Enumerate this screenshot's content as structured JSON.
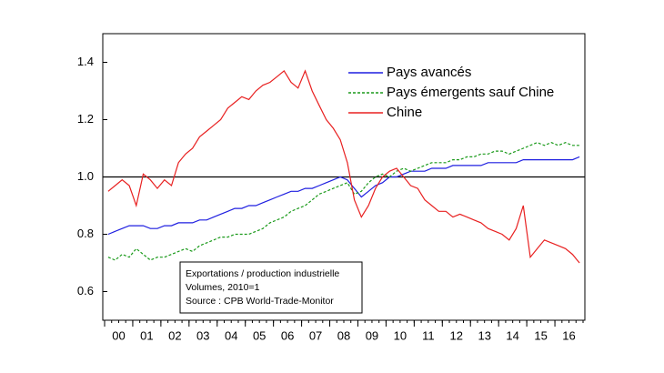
{
  "chart_data": {
    "type": "line",
    "categories": [
      null,
      "00",
      null,
      null,
      null,
      "01",
      null,
      null,
      null,
      "02",
      null,
      null,
      null,
      "03",
      null,
      null,
      null,
      "04",
      null,
      null,
      null,
      "05",
      null,
      null,
      null,
      "06",
      null,
      null,
      null,
      "07",
      null,
      null,
      null,
      "08",
      null,
      null,
      null,
      "09",
      null,
      null,
      null,
      "10",
      null,
      null,
      null,
      "11",
      null,
      null,
      null,
      "12",
      null,
      null,
      null,
      "13",
      null,
      null,
      null,
      "14",
      null,
      null,
      null,
      "15",
      null,
      null,
      null,
      "16",
      null,
      null
    ],
    "series": [
      {
        "name": "Pays avancés",
        "color": "#1f1fe0",
        "style": "solid",
        "values": [
          0.8,
          0.81,
          0.82,
          0.83,
          0.83,
          0.83,
          0.82,
          0.82,
          0.83,
          0.83,
          0.84,
          0.84,
          0.84,
          0.85,
          0.85,
          0.86,
          0.87,
          0.88,
          0.89,
          0.89,
          0.9,
          0.9,
          0.91,
          0.92,
          0.93,
          0.94,
          0.95,
          0.95,
          0.96,
          0.96,
          0.97,
          0.98,
          0.99,
          1.0,
          0.99,
          0.96,
          0.93,
          0.95,
          0.97,
          0.98,
          1.0,
          1.0,
          1.01,
          1.02,
          1.02,
          1.02,
          1.03,
          1.03,
          1.03,
          1.04,
          1.04,
          1.04,
          1.04,
          1.04,
          1.05,
          1.05,
          1.05,
          1.05,
          1.05,
          1.06,
          1.06,
          1.06,
          1.06,
          1.06,
          1.06,
          1.06,
          1.06,
          1.07
        ]
      },
      {
        "name": "Pays émergents sauf Chine",
        "color": "#1a9a1a",
        "style": "dashed",
        "values": [
          0.72,
          0.71,
          0.73,
          0.72,
          0.75,
          0.73,
          0.71,
          0.72,
          0.72,
          0.73,
          0.74,
          0.75,
          0.74,
          0.76,
          0.77,
          0.78,
          0.79,
          0.79,
          0.8,
          0.8,
          0.8,
          0.81,
          0.82,
          0.84,
          0.85,
          0.86,
          0.88,
          0.89,
          0.9,
          0.92,
          0.94,
          0.95,
          0.96,
          0.97,
          0.98,
          0.94,
          0.95,
          0.98,
          1.0,
          1.01,
          1.0,
          1.02,
          1.03,
          1.02,
          1.03,
          1.04,
          1.05,
          1.05,
          1.05,
          1.06,
          1.06,
          1.07,
          1.07,
          1.08,
          1.08,
          1.09,
          1.09,
          1.08,
          1.09,
          1.1,
          1.11,
          1.12,
          1.11,
          1.12,
          1.11,
          1.12,
          1.11,
          1.11
        ]
      },
      {
        "name": "Chine",
        "color": "#e82020",
        "style": "solid",
        "values": [
          0.95,
          0.97,
          0.99,
          0.97,
          0.9,
          1.01,
          0.99,
          0.96,
          0.99,
          0.97,
          1.05,
          1.08,
          1.1,
          1.14,
          1.16,
          1.18,
          1.2,
          1.24,
          1.26,
          1.28,
          1.27,
          1.3,
          1.32,
          1.33,
          1.35,
          1.37,
          1.33,
          1.31,
          1.37,
          1.3,
          1.25,
          1.2,
          1.17,
          1.13,
          1.05,
          0.92,
          0.86,
          0.9,
          0.96,
          1.0,
          1.02,
          1.03,
          1.0,
          0.97,
          0.96,
          0.92,
          0.9,
          0.88,
          0.88,
          0.86,
          0.87,
          0.86,
          0.85,
          0.84,
          0.82,
          0.81,
          0.8,
          0.78,
          0.82,
          0.9,
          0.72,
          0.75,
          0.78,
          0.77,
          0.76,
          0.75,
          0.73,
          0.7
        ]
      }
    ],
    "ylim": [
      0.5,
      1.5
    ],
    "yticks": [
      0.6,
      0.8,
      {
        "value": 1,
        "label": "1.0"
      },
      1.2,
      1.4
    ],
    "hline": 1,
    "legend": "top-right",
    "annotation": [
      "Exportations / production industrielle",
      "Volumes, 2010=1",
      "Source : CPB World-Trade-Monitor"
    ]
  }
}
